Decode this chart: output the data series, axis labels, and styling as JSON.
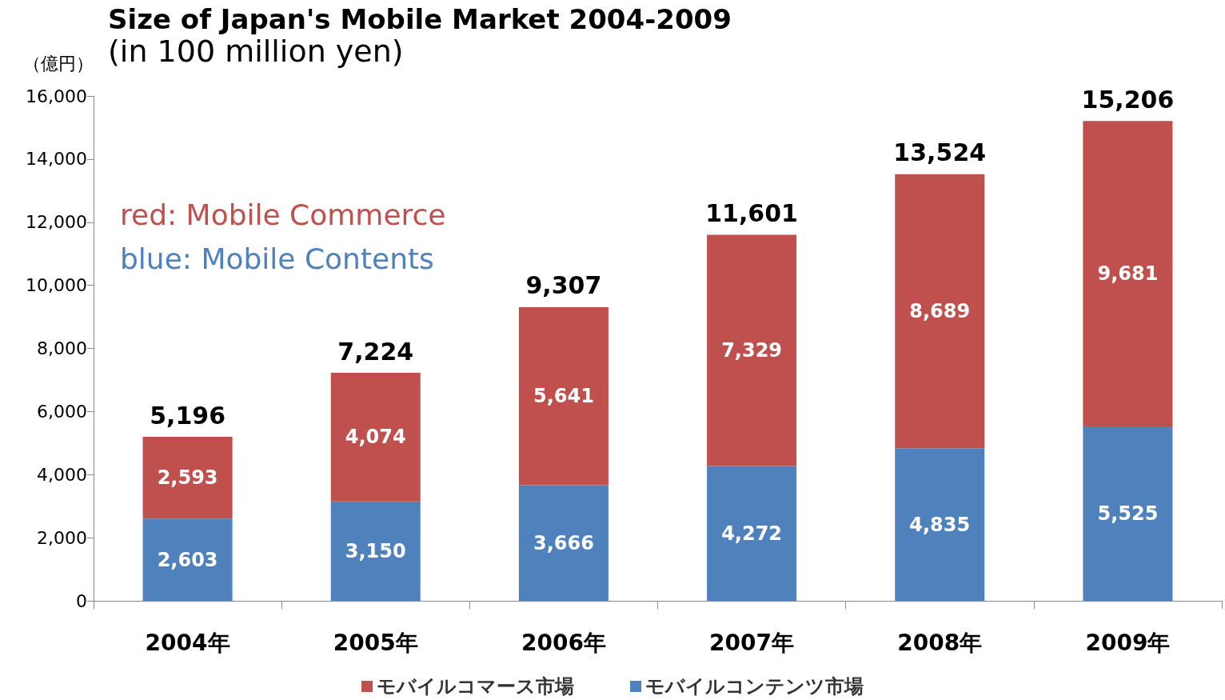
{
  "chart_data": {
    "type": "bar",
    "title": "Size of Japan's Mobile Market 2004-2009",
    "subtitle": "(in 100 million yen)",
    "ylabel": "（億円）",
    "categories": [
      "2004年",
      "2005年",
      "2006年",
      "2007年",
      "2008年",
      "2009年"
    ],
    "series": [
      {
        "name": "モバイルコンテンツ市場",
        "color": "#4f81bd",
        "values": [
          2603,
          3150,
          3666,
          4272,
          4835,
          5525
        ],
        "value_labels": [
          "2,603",
          "3,150",
          "3,666",
          "4,272",
          "4,835",
          "5,525"
        ]
      },
      {
        "name": "モバイルコマース市場",
        "color": "#c0504d",
        "values": [
          2593,
          4074,
          5641,
          7329,
          8689,
          9681
        ],
        "value_labels": [
          "2,593",
          "4,074",
          "5,641",
          "7,329",
          "8,689",
          "9,681"
        ]
      }
    ],
    "stacked": true,
    "totals": [
      "5,196",
      "7,224",
      "9,307",
      "11,601",
      "13,524",
      "15,206"
    ],
    "ylim": [
      0,
      16000
    ],
    "yticks": [
      0,
      {
        "value": 2000,
        "label": "2,000"
      },
      {
        "value": 4000,
        "label": "4,000"
      },
      {
        "value": 6000,
        "label": "6,000"
      },
      {
        "value": 8000,
        "label": "8,000"
      },
      {
        "value": 10000,
        "label": "10,000"
      },
      {
        "value": 12000,
        "label": "12,000"
      },
      {
        "value": 14000,
        "label": "14,000"
      },
      {
        "value": 16000,
        "label": "16,000"
      }
    ],
    "grid": false,
    "legend": "bottom",
    "annotations": [
      "red: Mobile Commerce",
      "blue: Mobile Contents"
    ]
  }
}
